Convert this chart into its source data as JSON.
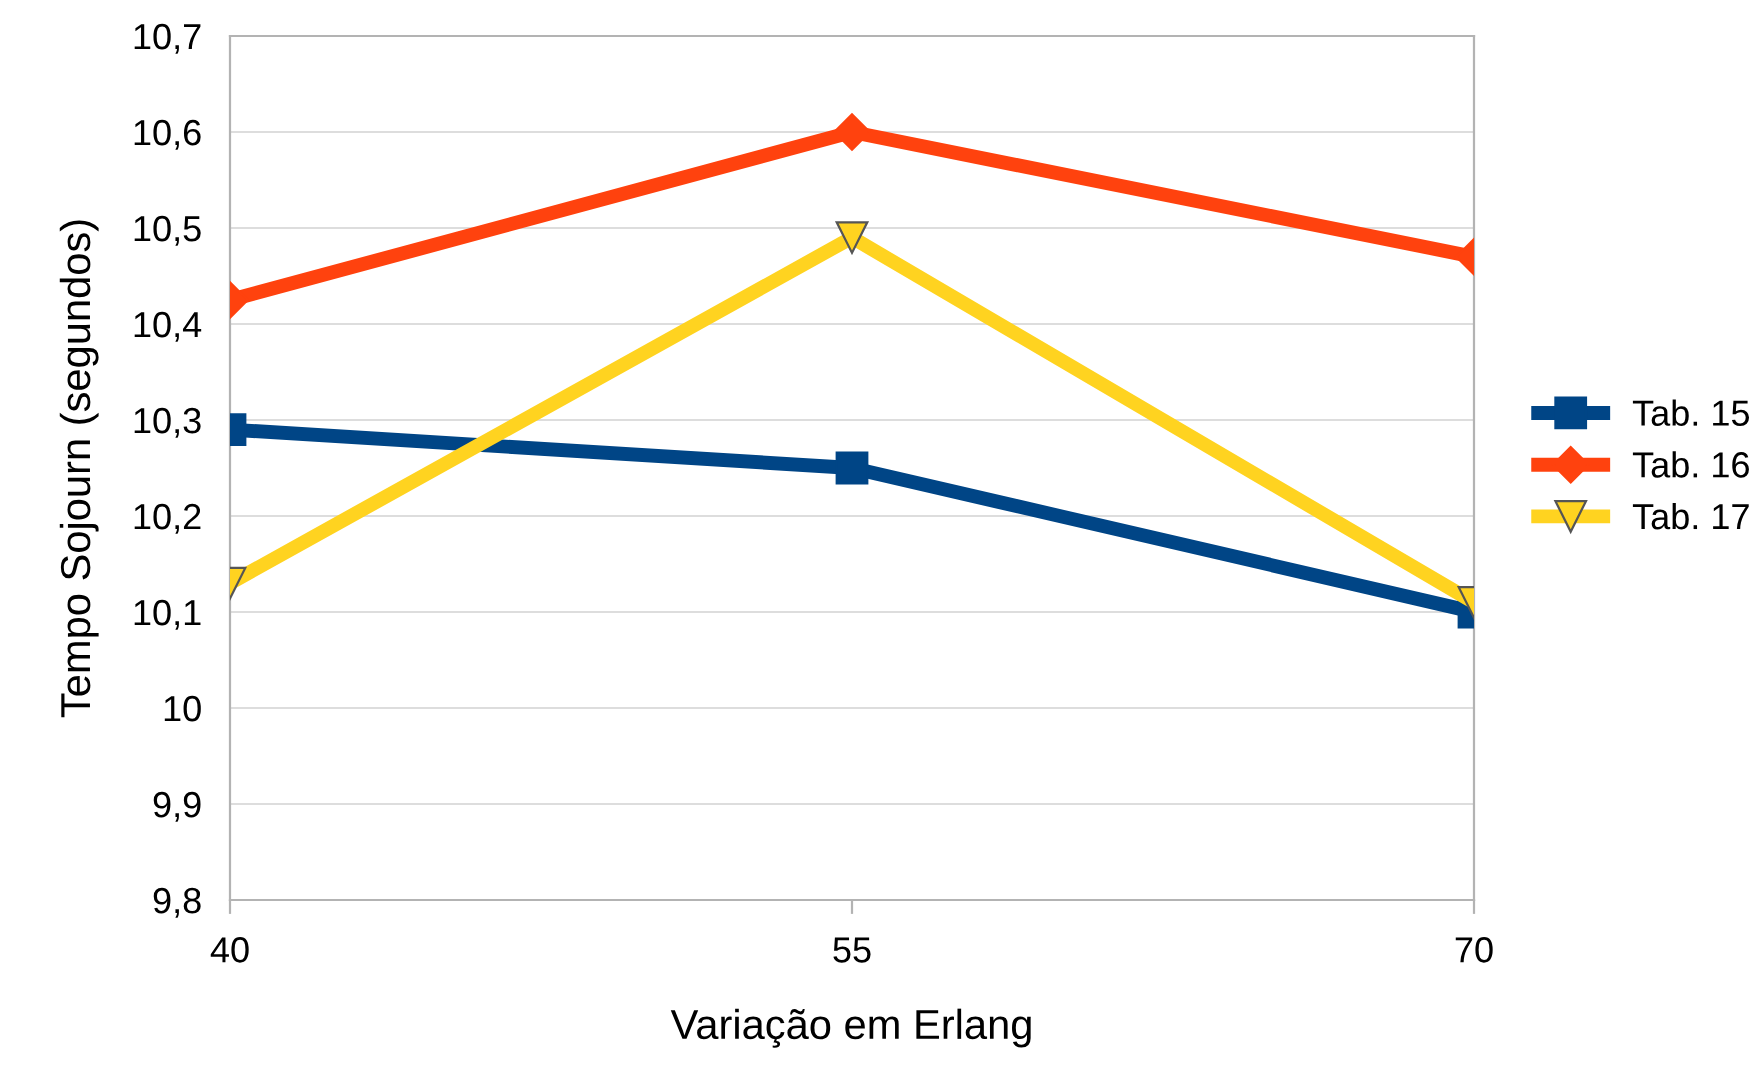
{
  "chart_data": {
    "type": "line",
    "xlabel": "Variação em Erlang",
    "ylabel": "Tempo Sojourn (segundos)",
    "categories": [
      "40",
      "55",
      "70"
    ],
    "series": [
      {
        "name": "Tab. 15",
        "color": "#004586",
        "marker": "square",
        "values": [
          10.29,
          10.25,
          10.1
        ]
      },
      {
        "name": "Tab. 16",
        "color": "#ff420e",
        "marker": "diamond",
        "values": [
          10.425,
          10.6,
          10.47
        ]
      },
      {
        "name": "Tab. 17",
        "color": "#ffd320",
        "marker": "triangle",
        "values": [
          10.13,
          10.49,
          10.11
        ]
      }
    ],
    "ylim": [
      9.8,
      10.7
    ],
    "yticks": [
      {
        "value": 9.8,
        "label": "9,8"
      },
      {
        "value": 9.9,
        "label": "9,9"
      },
      10,
      {
        "value": 10.1,
        "label": "10,1"
      },
      {
        "value": 10.2,
        "label": "10,2"
      },
      {
        "value": 10.3,
        "label": "10,3"
      },
      {
        "value": 10.4,
        "label": "10,4"
      },
      {
        "value": 10.5,
        "label": "10,5"
      },
      {
        "value": 10.6,
        "label": "10,6"
      },
      {
        "value": 10.7,
        "label": "10,7"
      }
    ],
    "grid": "y",
    "legend": "right",
    "line_style": "solid"
  }
}
